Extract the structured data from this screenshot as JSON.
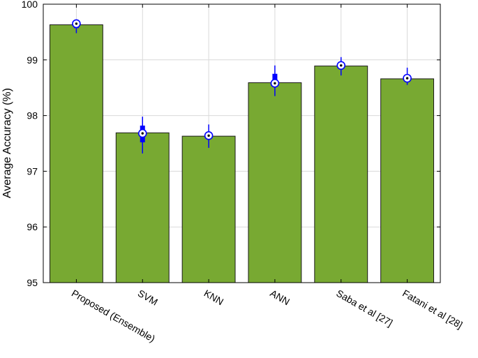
{
  "chart_data": {
    "type": "bar",
    "title": "",
    "xlabel": "",
    "ylabel": "Average Accuracy (%)",
    "ylim": [
      95,
      100
    ],
    "yticks": [
      95,
      96,
      97,
      98,
      99,
      100
    ],
    "grid": true,
    "categories": [
      "Proposed (Ensemble)",
      "SVM",
      "KNN",
      "ANN",
      "Saba et al [27]",
      "Fatani et al [28]"
    ],
    "values": [
      99.63,
      97.69,
      97.63,
      98.59,
      98.89,
      98.66
    ],
    "boxplots": [
      {
        "median": 99.65,
        "q1": 99.57,
        "q3": 99.69,
        "whisker_low": 99.48,
        "whisker_high": 99.7
      },
      {
        "median": 97.68,
        "q1": 97.52,
        "q3": 97.82,
        "whisker_low": 97.32,
        "whisker_high": 97.98
      },
      {
        "median": 97.64,
        "q1": 97.6,
        "q3": 97.68,
        "whisker_low": 97.42,
        "whisker_high": 97.84
      },
      {
        "median": 98.58,
        "q1": 98.55,
        "q3": 98.75,
        "whisker_low": 98.35,
        "whisker_high": 98.9
      },
      {
        "median": 98.9,
        "q1": 98.85,
        "q3": 98.95,
        "whisker_low": 98.72,
        "whisker_high": 99.05
      },
      {
        "median": 98.67,
        "q1": 98.62,
        "q3": 98.72,
        "whisker_low": 98.55,
        "whisker_high": 98.86
      }
    ],
    "colors": {
      "bar_fill": "#78A932",
      "bar_edge": "#1a1a1a",
      "box": "#0000FF",
      "grid": "#d9d9d9"
    }
  }
}
